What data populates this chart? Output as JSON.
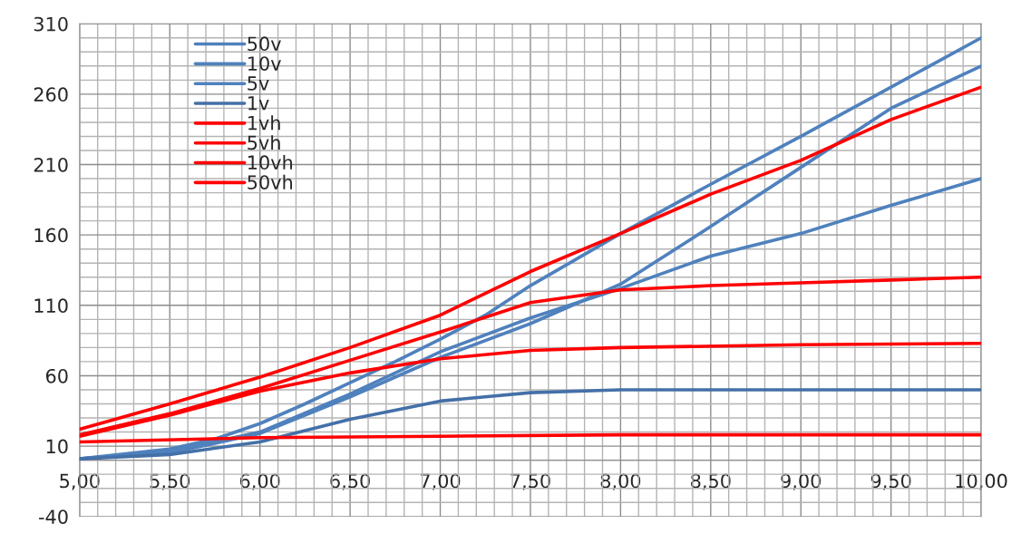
{
  "chart_data": {
    "type": "line",
    "xlim": [
      5,
      10
    ],
    "ylim": [
      -40,
      310
    ],
    "xticks": [
      {
        "value": 5,
        "label": "5,00"
      },
      {
        "value": 5.5,
        "label": "5,50"
      },
      {
        "value": 6,
        "label": "6,00"
      },
      {
        "value": 6.5,
        "label": "6,50"
      },
      {
        "value": 7,
        "label": "7,00"
      },
      {
        "value": 7.5,
        "label": "7,50"
      },
      {
        "value": 8,
        "label": "8,00"
      },
      {
        "value": 8.5,
        "label": "8,50"
      },
      {
        "value": 9,
        "label": "9,00"
      },
      {
        "value": 9.5,
        "label": "9,50"
      },
      {
        "value": 10,
        "label": "10,00"
      }
    ],
    "yticks": [
      -40,
      10,
      60,
      110,
      160,
      210,
      260,
      310
    ],
    "grid": true,
    "legend": "top left",
    "marker": "none",
    "line_style": "solid",
    "series": [
      {
        "name": "50v",
        "color": "#4f81bd",
        "x": [
          5,
          5.5,
          5.75,
          6,
          6.25,
          6.5,
          6.75,
          7,
          7.25,
          7.5,
          8,
          8.5,
          9,
          9.5,
          10
        ],
        "values": [
          1,
          8,
          15,
          26,
          40,
          55,
          70,
          86,
          103,
          124,
          161,
          196,
          230,
          265,
          300
        ]
      },
      {
        "name": "10v",
        "color": "#4f81bd",
        "x": [
          5,
          5.5,
          6,
          6.5,
          7,
          7.5,
          8,
          8.5,
          9,
          9.5,
          10
        ],
        "values": [
          1,
          5,
          19,
          45,
          73,
          97,
          125,
          166,
          208,
          250,
          280
        ]
      },
      {
        "name": "5v",
        "color": "#4f81bd",
        "x": [
          5,
          5.5,
          6,
          6.5,
          7,
          7.5,
          8,
          8.5,
          9,
          9.5,
          10
        ],
        "values": [
          1,
          6,
          20,
          47,
          77,
          101,
          122,
          145,
          161,
          181,
          200
        ]
      },
      {
        "name": "1v",
        "color": "#4470a8",
        "x": [
          5,
          5.5,
          6,
          6.5,
          7,
          7.5,
          8,
          9,
          10
        ],
        "values": [
          1,
          4,
          13,
          29,
          42,
          48,
          50,
          50,
          50
        ]
      },
      {
        "name": "1vh",
        "color": "#ff0000",
        "x": [
          5,
          6,
          7,
          8,
          9,
          10
        ],
        "values": [
          13,
          16,
          17,
          18,
          18,
          18
        ]
      },
      {
        "name": "5vh",
        "color": "#ff0000",
        "x": [
          5,
          5.5,
          6,
          6.5,
          7,
          7.5,
          8,
          9,
          10
        ],
        "values": [
          17,
          32,
          49,
          62,
          72,
          78,
          80,
          82,
          83
        ]
      },
      {
        "name": "10vh",
        "color": "#ff0000",
        "x": [
          5,
          5.5,
          6,
          6.5,
          7,
          7.5,
          8,
          8.5,
          9,
          9.5,
          10
        ],
        "values": [
          18,
          33,
          51,
          71,
          91,
          112,
          121,
          124,
          126,
          128,
          130
        ]
      },
      {
        "name": "50vh",
        "color": "#ff0000",
        "x": [
          5,
          5.5,
          6,
          6.5,
          7,
          7.5,
          8,
          8.5,
          9,
          9.5,
          10
        ],
        "values": [
          22,
          40,
          59,
          80,
          103,
          134,
          161,
          189,
          213,
          242,
          265
        ]
      }
    ]
  }
}
